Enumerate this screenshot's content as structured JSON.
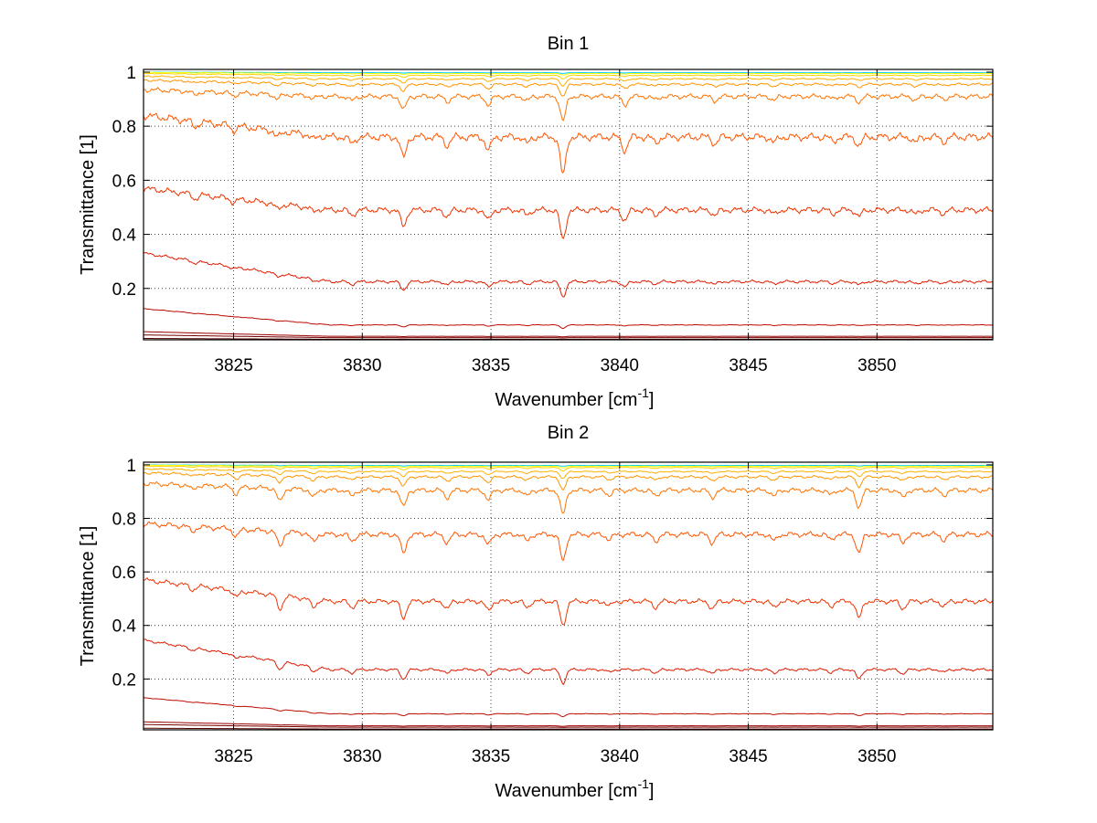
{
  "chart_data": [
    {
      "type": "line",
      "title": "Bin 1",
      "xlabel": "Wavenumber [cm",
      "xlabel_sup": "-1",
      "xlabel_end": "]",
      "ylabel": "Transmittance [1]",
      "xlim": [
        3821.5,
        3854.5
      ],
      "ylim": [
        0.01,
        1.01
      ],
      "grid": true,
      "xticks": [
        3825,
        3830,
        3835,
        3840,
        3845,
        3850
      ],
      "xtick_labels": [
        "3825",
        "3830",
        "3835",
        "3840",
        "3845",
        "3850"
      ],
      "yticks": [
        0.2,
        0.4,
        0.6,
        0.8,
        1
      ],
      "ytick_labels": [
        "0.2",
        "0.4",
        "0.6",
        "0.8",
        "1"
      ],
      "absorption_lines": [
        {
          "x": 3823.5,
          "k": 0.15
        },
        {
          "x": 3825.0,
          "k": 0.12
        },
        {
          "x": 3826.7,
          "k": 0.18
        },
        {
          "x": 3828.1,
          "k": 0.12
        },
        {
          "x": 3829.6,
          "k": 0.18
        },
        {
          "x": 3831.6,
          "k": 0.55
        },
        {
          "x": 3833.3,
          "k": 0.22
        },
        {
          "x": 3834.9,
          "k": 0.35
        },
        {
          "x": 3836.4,
          "k": 0.18
        },
        {
          "x": 3837.8,
          "k": 1.0
        },
        {
          "x": 3840.2,
          "k": 0.35
        },
        {
          "x": 3841.4,
          "k": 0.15
        },
        {
          "x": 3843.7,
          "k": 0.18
        },
        {
          "x": 3846.0,
          "k": 0.15
        },
        {
          "x": 3848.3,
          "k": 0.12
        },
        {
          "x": 3849.3,
          "k": 0.22
        },
        {
          "x": 3851.5,
          "k": 0.15
        },
        {
          "x": 3852.6,
          "k": 0.12
        }
      ],
      "series": [
        {
          "color": "#00ccff",
          "start": 1.0,
          "base": 0.998,
          "depth": 0.003
        },
        {
          "color": "#ffff00",
          "start": 0.999,
          "base": 0.995,
          "depth": 0.006
        },
        {
          "color": "#ffd000",
          "start": 0.995,
          "base": 0.988,
          "depth": 0.012
        },
        {
          "color": "#ffb000",
          "start": 0.985,
          "base": 0.975,
          "depth": 0.025
        },
        {
          "color": "#ff9500",
          "start": 0.97,
          "base": 0.955,
          "depth": 0.045
        },
        {
          "color": "#ff7300",
          "start": 0.935,
          "base": 0.91,
          "depth": 0.09
        },
        {
          "color": "#ff5500",
          "start": 0.84,
          "base": 0.76,
          "depth": 0.14
        },
        {
          "color": "#ee3300",
          "start": 0.57,
          "base": 0.49,
          "depth": 0.11
        },
        {
          "color": "#dd1a00",
          "start": 0.33,
          "base": 0.225,
          "depth": 0.055
        },
        {
          "color": "#bb0a00",
          "start": 0.125,
          "base": 0.065,
          "depth": 0.012
        },
        {
          "color": "#990000",
          "start": 0.04,
          "base": 0.023,
          "depth": 0.002
        },
        {
          "color": "#770000",
          "start": 0.028,
          "base": 0.018,
          "depth": 0.001
        },
        {
          "color": "#550000",
          "start": 0.015,
          "base": 0.012,
          "depth": 0.0
        }
      ]
    },
    {
      "type": "line",
      "title": "Bin 2",
      "xlabel": "Wavenumber [cm",
      "xlabel_sup": "-1",
      "xlabel_end": "]",
      "ylabel": "Transmittance [1]",
      "xlim": [
        3821.5,
        3854.5
      ],
      "ylim": [
        0.01,
        1.01
      ],
      "grid": true,
      "xticks": [
        3825,
        3830,
        3835,
        3840,
        3845,
        3850
      ],
      "xtick_labels": [
        "3825",
        "3830",
        "3835",
        "3840",
        "3845",
        "3850"
      ],
      "yticks": [
        0.2,
        0.4,
        0.6,
        0.8,
        1
      ],
      "ytick_labels": [
        "0.2",
        "0.4",
        "0.6",
        "0.8",
        "1"
      ],
      "absorption_lines": [
        {
          "x": 3823.4,
          "k": 0.18
        },
        {
          "x": 3825.1,
          "k": 0.28
        },
        {
          "x": 3826.8,
          "k": 0.55
        },
        {
          "x": 3828.1,
          "k": 0.32
        },
        {
          "x": 3829.6,
          "k": 0.25
        },
        {
          "x": 3831.6,
          "k": 0.7
        },
        {
          "x": 3833.3,
          "k": 0.3
        },
        {
          "x": 3834.9,
          "k": 0.4
        },
        {
          "x": 3836.4,
          "k": 0.25
        },
        {
          "x": 3837.8,
          "k": 1.0
        },
        {
          "x": 3839.6,
          "k": 0.2
        },
        {
          "x": 3841.4,
          "k": 0.25
        },
        {
          "x": 3843.6,
          "k": 0.3
        },
        {
          "x": 3846.0,
          "k": 0.25
        },
        {
          "x": 3848.2,
          "k": 0.2
        },
        {
          "x": 3849.3,
          "k": 0.7
        },
        {
          "x": 3851.0,
          "k": 0.3
        },
        {
          "x": 3852.6,
          "k": 0.2
        }
      ],
      "series": [
        {
          "color": "#00ccff",
          "start": 1.0,
          "base": 0.998,
          "depth": 0.003
        },
        {
          "color": "#ffff00",
          "start": 0.999,
          "base": 0.995,
          "depth": 0.006
        },
        {
          "color": "#ffd000",
          "start": 0.995,
          "base": 0.99,
          "depth": 0.012
        },
        {
          "color": "#ffb000",
          "start": 0.985,
          "base": 0.975,
          "depth": 0.025
        },
        {
          "color": "#ff9500",
          "start": 0.97,
          "base": 0.955,
          "depth": 0.05
        },
        {
          "color": "#ff7300",
          "start": 0.93,
          "base": 0.905,
          "depth": 0.09
        },
        {
          "color": "#ff5500",
          "start": 0.78,
          "base": 0.74,
          "depth": 0.1
        },
        {
          "color": "#ee3300",
          "start": 0.57,
          "base": 0.49,
          "depth": 0.09
        },
        {
          "color": "#dd1a00",
          "start": 0.345,
          "base": 0.235,
          "depth": 0.05
        },
        {
          "color": "#bb0a00",
          "start": 0.13,
          "base": 0.07,
          "depth": 0.01
        },
        {
          "color": "#990000",
          "start": 0.04,
          "base": 0.025,
          "depth": 0.002
        },
        {
          "color": "#770000",
          "start": 0.03,
          "base": 0.02,
          "depth": 0.001
        },
        {
          "color": "#550000",
          "start": 0.016,
          "base": 0.013,
          "depth": 0.0
        }
      ]
    }
  ]
}
